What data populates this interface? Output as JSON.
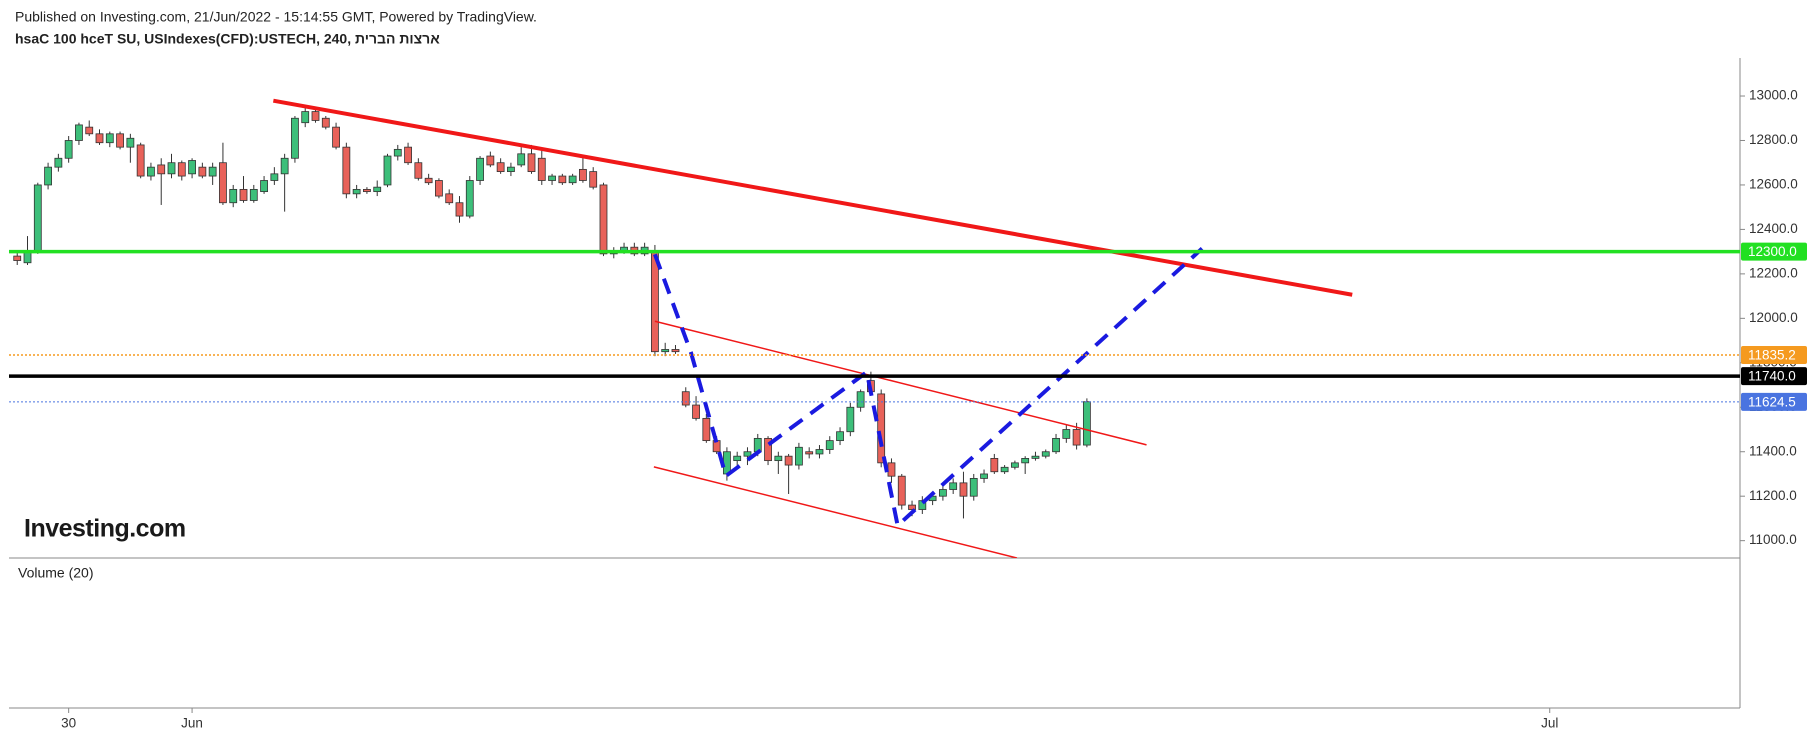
{
  "chart_data": {
    "type": "candlestick",
    "title": "Published on Investing.com, 21/Jun/2022 - 15:14:55 GMT, Powered by TradingView.",
    "subtitle": "ארצות הברית ,hsaC 100 hceT SU, USIndexes(CFD):USTECH, 240",
    "logo": "Investing.com",
    "pane_label": "Volume (20)",
    "up_color": "#3dbf7a",
    "down_color": "#e8625a",
    "xlim": [
      -0.8,
      167.5
    ],
    "ylim": [
      10922,
      13171
    ],
    "xticks": [
      {
        "value": 5,
        "label": "30"
      },
      {
        "value": 17,
        "label": "Jun"
      },
      {
        "value": 149,
        "label": "Jul"
      }
    ],
    "yticks": [
      {
        "value": 11000,
        "label": "11000.0"
      },
      {
        "value": 11200,
        "label": "11200.0"
      },
      {
        "value": 11400,
        "label": "11400.0"
      },
      {
        "value": 11600,
        "label": "11600.0"
      },
      {
        "value": 11800,
        "label": "11800.0"
      },
      {
        "value": 12000,
        "label": "12000.0"
      },
      {
        "value": 12200,
        "label": "12200.0"
      },
      {
        "value": 12400,
        "label": "12400.0"
      },
      {
        "value": 12600,
        "label": "12600.0"
      },
      {
        "value": 12800,
        "label": "12800.0"
      },
      {
        "value": 13000,
        "label": "13000.0"
      }
    ],
    "hlines": [
      {
        "value": 12300,
        "label": "12300.0",
        "color": "#22e022",
        "style": "solid",
        "width": 3.5
      },
      {
        "value": 11835.2,
        "label": "11835.2",
        "color": "#f59a1f",
        "style": "dotted",
        "width": 1.5
      },
      {
        "value": 11740,
        "label": "11740.0",
        "color": "#000000",
        "style": "solid",
        "width": 3.5
      },
      {
        "value": 11624.5,
        "label": "11624.5",
        "color": "#4a74e0",
        "style": "dotted",
        "width": 1
      }
    ],
    "trendlines": [
      {
        "color": "#f01818",
        "width": 4,
        "dash": false,
        "x": [
          24.9,
          129.8
        ],
        "y": [
          12979,
          12106
        ]
      },
      {
        "color": "#f01818",
        "width": 1.5,
        "dash": false,
        "x": [
          62.0,
          109.8
        ],
        "y": [
          11987,
          11431
        ]
      },
      {
        "color": "#f01818",
        "width": 1.5,
        "dash": false,
        "x": [
          61.9,
          97.2
        ],
        "y": [
          11332,
          10922
        ]
      },
      {
        "color": "#1a1ae0",
        "width": 4,
        "dash": true,
        "x": [
          62.0,
          65.5,
          68.9,
          82.6,
          85.6,
          115.2
        ],
        "y": [
          12288,
          11847,
          11291,
          11758,
          11068,
          12314
        ]
      }
    ],
    "candles": [
      [
        12280,
        12300,
        12240,
        12260
      ],
      [
        12250,
        12370,
        12240,
        12300
      ],
      [
        12300,
        12610,
        12290,
        12600
      ],
      [
        12600,
        12700,
        12580,
        12680
      ],
      [
        12680,
        12740,
        12660,
        12720
      ],
      [
        12720,
        12820,
        12700,
        12800
      ],
      [
        12800,
        12880,
        12780,
        12870
      ],
      [
        12860,
        12890,
        12820,
        12830
      ],
      [
        12830,
        12850,
        12780,
        12790
      ],
      [
        12790,
        12840,
        12770,
        12830
      ],
      [
        12830,
        12840,
        12760,
        12770
      ],
      [
        12770,
        12830,
        12700,
        12810
      ],
      [
        12780,
        12790,
        12630,
        12640
      ],
      [
        12640,
        12700,
        12620,
        12680
      ],
      [
        12690,
        12720,
        12510,
        12650
      ],
      [
        12650,
        12740,
        12630,
        12700
      ],
      [
        12700,
        12710,
        12620,
        12640
      ],
      [
        12650,
        12720,
        12630,
        12710
      ],
      [
        12680,
        12700,
        12630,
        12640
      ],
      [
        12640,
        12700,
        12600,
        12680
      ],
      [
        12700,
        12790,
        12510,
        12520
      ],
      [
        12520,
        12600,
        12500,
        12580
      ],
      [
        12580,
        12640,
        12520,
        12530
      ],
      [
        12530,
        12600,
        12520,
        12580
      ],
      [
        12570,
        12640,
        12560,
        12620
      ],
      [
        12620,
        12680,
        12600,
        12650
      ],
      [
        12650,
        12740,
        12480,
        12720
      ],
      [
        12720,
        12910,
        12700,
        12900
      ],
      [
        12880,
        12950,
        12860,
        12930
      ],
      [
        12930,
        12940,
        12880,
        12890
      ],
      [
        12900,
        12910,
        12850,
        12860
      ],
      [
        12860,
        12880,
        12760,
        12770
      ],
      [
        12770,
        12790,
        12540,
        12560
      ],
      [
        12560,
        12600,
        12540,
        12580
      ],
      [
        12580,
        12590,
        12560,
        12570
      ],
      [
        12570,
        12620,
        12550,
        12590
      ],
      [
        12600,
        12740,
        12590,
        12730
      ],
      [
        12730,
        12780,
        12710,
        12760
      ],
      [
        12770,
        12790,
        12690,
        12700
      ],
      [
        12700,
        12720,
        12620,
        12630
      ],
      [
        12630,
        12650,
        12600,
        12610
      ],
      [
        12620,
        12630,
        12540,
        12550
      ],
      [
        12560,
        12580,
        12510,
        12520
      ],
      [
        12520,
        12550,
        12430,
        12460
      ],
      [
        12460,
        12640,
        12450,
        12620
      ],
      [
        12620,
        12730,
        12600,
        12720
      ],
      [
        12730,
        12750,
        12680,
        12690
      ],
      [
        12700,
        12720,
        12650,
        12660
      ],
      [
        12660,
        12700,
        12640,
        12680
      ],
      [
        12690,
        12770,
        12680,
        12740
      ],
      [
        12740,
        12780,
        12650,
        12660
      ],
      [
        12720,
        12760,
        12600,
        12620
      ],
      [
        12620,
        12650,
        12600,
        12640
      ],
      [
        12640,
        12650,
        12600,
        12610
      ],
      [
        12610,
        12650,
        12600,
        12640
      ],
      [
        12670,
        12730,
        12610,
        12620
      ],
      [
        12660,
        12680,
        12580,
        12590
      ],
      [
        12600,
        12610,
        12280,
        12290
      ],
      [
        12290,
        12320,
        12270,
        12300
      ],
      [
        12300,
        12340,
        12290,
        12320
      ],
      [
        12320,
        12340,
        12280,
        12290
      ],
      [
        12290,
        12340,
        12280,
        12320
      ],
      [
        12300,
        12330,
        11830,
        11850
      ],
      [
        11850,
        11890,
        11830,
        11860
      ],
      [
        11860,
        11880,
        11840,
        11850
      ],
      [
        11670,
        11690,
        11600,
        11610
      ],
      [
        11610,
        11650,
        11540,
        11550
      ],
      [
        11550,
        11570,
        11440,
        11450
      ],
      [
        11450,
        11470,
        11390,
        11400
      ],
      [
        11300,
        11420,
        11270,
        11400
      ],
      [
        11360,
        11400,
        11330,
        11380
      ],
      [
        11380,
        11420,
        11340,
        11400
      ],
      [
        11400,
        11480,
        11380,
        11460
      ],
      [
        11460,
        11470,
        11340,
        11360
      ],
      [
        11360,
        11400,
        11300,
        11380
      ],
      [
        11380,
        11390,
        11210,
        11340
      ],
      [
        11340,
        11440,
        11320,
        11420
      ],
      [
        11400,
        11420,
        11370,
        11390
      ],
      [
        11390,
        11430,
        11370,
        11410
      ],
      [
        11410,
        11470,
        11390,
        11450
      ],
      [
        11450,
        11510,
        11430,
        11490
      ],
      [
        11490,
        11620,
        11470,
        11600
      ],
      [
        11600,
        11680,
        11580,
        11670
      ],
      [
        11720,
        11760,
        11660,
        11670
      ],
      [
        11660,
        11680,
        11330,
        11350
      ],
      [
        11350,
        11370,
        11260,
        11290
      ],
      [
        11290,
        11300,
        11140,
        11160
      ],
      [
        11160,
        11180,
        11110,
        11140
      ],
      [
        11140,
        11200,
        11120,
        11180
      ],
      [
        11180,
        11220,
        11160,
        11200
      ],
      [
        11200,
        11250,
        11180,
        11230
      ],
      [
        11230,
        11280,
        11210,
        11260
      ],
      [
        11260,
        11310,
        11100,
        11200
      ],
      [
        11200,
        11300,
        11180,
        11280
      ],
      [
        11280,
        11320,
        11260,
        11300
      ],
      [
        11370,
        11390,
        11300,
        11310
      ],
      [
        11310,
        11340,
        11300,
        11330
      ],
      [
        11330,
        11360,
        11320,
        11350
      ],
      [
        11350,
        11380,
        11300,
        11370
      ],
      [
        11370,
        11400,
        11360,
        11380
      ],
      [
        11380,
        11410,
        11370,
        11400
      ],
      [
        11400,
        11480,
        11390,
        11460
      ],
      [
        11460,
        11520,
        11440,
        11500
      ],
      [
        11500,
        11530,
        11410,
        11430
      ],
      [
        11430,
        11640,
        11420,
        11625
      ]
    ]
  }
}
